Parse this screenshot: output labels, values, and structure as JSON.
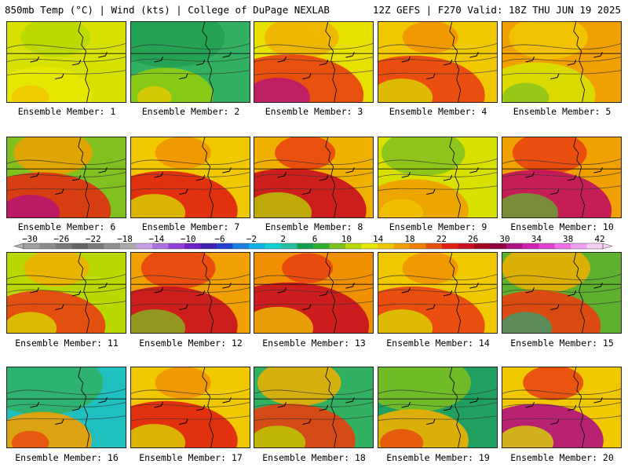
{
  "header": {
    "left": "850mb Temp (°C) | Wind (kts) | College of DuPage NEXLAB",
    "right": "12Z GEFS | F270 Valid: 18Z THU JUN 19 2025"
  },
  "members": [
    {
      "label": "Ensemble Member: 1",
      "palette": [
        "#d8e000",
        "#b8d800",
        "#e8e800",
        "#f0c000"
      ],
      "hot": 0.35,
      "cool": 0.25
    },
    {
      "label": "Ensemble Member: 2",
      "palette": [
        "#30b060",
        "#20a050",
        "#90cc10",
        "#f0c800"
      ],
      "hot": 0.3,
      "cool": 0.7
    },
    {
      "label": "Ensemble Member: 3",
      "palette": [
        "#e8e000",
        "#f0b000",
        "#e84010",
        "#b01080"
      ],
      "hot": 0.8,
      "cool": 0.3
    },
    {
      "label": "Ensemble Member: 4",
      "palette": [
        "#f0c800",
        "#f09000",
        "#e84010",
        "#d8e000"
      ],
      "hot": 0.75,
      "cool": 0.1
    },
    {
      "label": "Ensemble Member: 5",
      "palette": [
        "#f0a000",
        "#f0c800",
        "#d8e000",
        "#80c020"
      ],
      "hot": 0.5,
      "cool": 0.35
    },
    {
      "label": "Ensemble Member: 6",
      "palette": [
        "#80c020",
        "#f0a000",
        "#e03010",
        "#b01080"
      ],
      "hot": 0.7,
      "cool": 0.35
    },
    {
      "label": "Ensemble Member: 7",
      "palette": [
        "#f0c800",
        "#f09000",
        "#e02010",
        "#d8e000"
      ],
      "hot": 0.75,
      "cool": 0.1
    },
    {
      "label": "Ensemble Member: 8",
      "palette": [
        "#f0b000",
        "#e84010",
        "#c81020",
        "#b8d800"
      ],
      "hot": 0.85,
      "cool": 0.15
    },
    {
      "label": "Ensemble Member: 9",
      "palette": [
        "#d8e000",
        "#80c020",
        "#f0a000",
        "#f0c800"
      ],
      "hot": 0.45,
      "cool": 0.4
    },
    {
      "label": "Ensemble Member: 10",
      "palette": [
        "#f0a000",
        "#e84010",
        "#c01060",
        "#60b030"
      ],
      "hot": 0.8,
      "cool": 0.3
    },
    {
      "label": "Ensemble Member: 11",
      "palette": [
        "#b8d800",
        "#f0b000",
        "#e84010",
        "#d8e000"
      ],
      "hot": 0.6,
      "cool": 0.2
    },
    {
      "label": "Ensemble Member: 12",
      "palette": [
        "#f0a000",
        "#e84010",
        "#c81020",
        "#80c020"
      ],
      "hot": 0.75,
      "cool": 0.3
    },
    {
      "label": "Ensemble Member: 13",
      "palette": [
        "#f09000",
        "#e84010",
        "#c81020",
        "#f0c800"
      ],
      "hot": 0.9,
      "cool": 0.05
    },
    {
      "label": "Ensemble Member: 14",
      "palette": [
        "#f0c800",
        "#f09000",
        "#e84010",
        "#d8e000"
      ],
      "hot": 0.75,
      "cool": 0.1
    },
    {
      "label": "Ensemble Member: 15",
      "palette": [
        "#60b030",
        "#f0b000",
        "#e84010",
        "#30a070"
      ],
      "hot": 0.6,
      "cool": 0.45
    },
    {
      "label": "Ensemble Member: 16",
      "palette": [
        "#20c0c0",
        "#30b060",
        "#f0a000",
        "#e84010"
      ],
      "hot": 0.35,
      "cool": 0.8
    },
    {
      "label": "Ensemble Member: 17",
      "palette": [
        "#f0c800",
        "#f09000",
        "#e02010",
        "#d8e000"
      ],
      "hot": 0.75,
      "cool": 0.1
    },
    {
      "label": "Ensemble Member: 18",
      "palette": [
        "#30b060",
        "#f0b000",
        "#e84010",
        "#b8d800"
      ],
      "hot": 0.65,
      "cool": 0.4
    },
    {
      "label": "Ensemble Member: 19",
      "palette": [
        "#20a060",
        "#80c020",
        "#f0b000",
        "#e84010"
      ],
      "hot": 0.45,
      "cool": 0.65
    },
    {
      "label": "Ensemble Member: 20",
      "palette": [
        "#f0c800",
        "#e84010",
        "#b01080",
        "#d8e000"
      ],
      "hot": 0.65,
      "cool": 0.15
    }
  ],
  "colorbar": {
    "ticks": [
      "−30",
      "−26",
      "−22",
      "−18",
      "−14",
      "−10",
      "−6",
      "−2",
      "2",
      "6",
      "10",
      "14",
      "18",
      "22",
      "26",
      "30",
      "34",
      "38",
      "42"
    ],
    "colors": [
      "#a0a0a0",
      "#8c8c8c",
      "#787878",
      "#646464",
      "#7a7a7a",
      "#929292",
      "#aaaaaa",
      "#c8a0e8",
      "#b070e0",
      "#9040d8",
      "#7020c8",
      "#4020b0",
      "#2040d0",
      "#1a80e0",
      "#10b0e8",
      "#10d0d0",
      "#20c0a0",
      "#10a050",
      "#30b030",
      "#80c020",
      "#b8d800",
      "#e8e800",
      "#f0c800",
      "#f0a000",
      "#f08000",
      "#e85010",
      "#e02010",
      "#c81020",
      "#a00820",
      "#900040",
      "#b01080",
      "#d020b0",
      "#e040d0",
      "#f070e8",
      "#f0a0f0",
      "#f8d0f8"
    ]
  }
}
